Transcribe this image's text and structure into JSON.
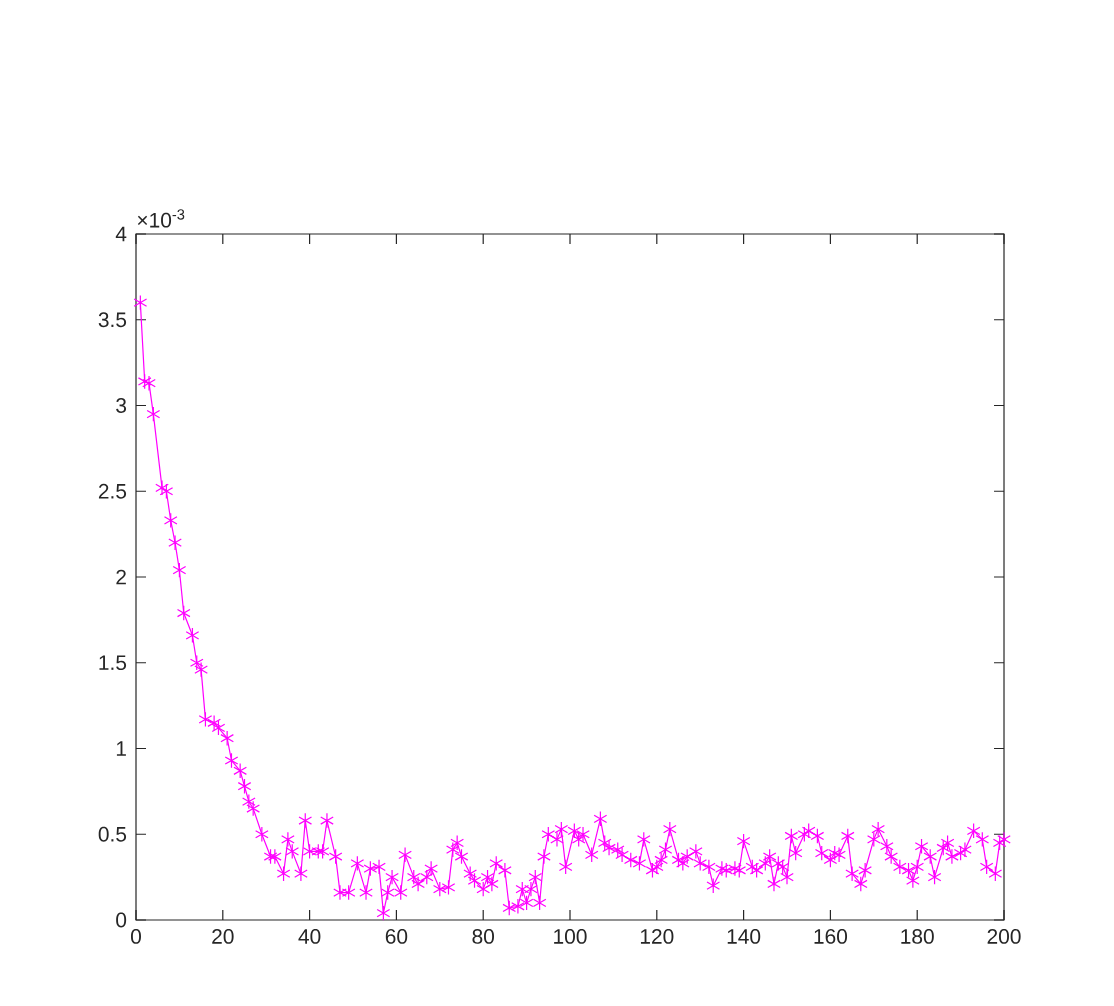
{
  "chart_data": {
    "type": "line",
    "color": "#ff00ff",
    "marker": "cross",
    "line_style": "solid",
    "xlim": [
      0,
      200
    ],
    "ylim": [
      0,
      4
    ],
    "xticks": [
      0,
      20,
      40,
      60,
      80,
      100,
      120,
      140,
      160,
      180,
      200
    ],
    "yticks": [
      0,
      0.5,
      1,
      1.5,
      2,
      2.5,
      3,
      3.5,
      4
    ],
    "annotations": [
      "×10$^{-3}$"
    ],
    "x": [
      1,
      2,
      3,
      4,
      6,
      7,
      8,
      9,
      10,
      11,
      13,
      14,
      15,
      16,
      18,
      19,
      21,
      22,
      24,
      25,
      26,
      27,
      29,
      31,
      32,
      34,
      35,
      36,
      38,
      39,
      40,
      42,
      43,
      44,
      46,
      47,
      49,
      51,
      53,
      54,
      56,
      57,
      58,
      59,
      61,
      62,
      64,
      65,
      67,
      68,
      70,
      72,
      73,
      74,
      75,
      77,
      78,
      80,
      81,
      82,
      83,
      85,
      86,
      88,
      89,
      90,
      91,
      92,
      93,
      94,
      95,
      97,
      98,
      99,
      101,
      102,
      103,
      105,
      107,
      108,
      109,
      111,
      112,
      114,
      116,
      117,
      119,
      120,
      121,
      122,
      123,
      125,
      126,
      127,
      129,
      130,
      132,
      133,
      135,
      136,
      138,
      139,
      140,
      142,
      143,
      145,
      146,
      147,
      148,
      149,
      150,
      151,
      152,
      154,
      155,
      157,
      158,
      160,
      161,
      162,
      164,
      165,
      167,
      168,
      170,
      171,
      173,
      174,
      176,
      178,
      179,
      180,
      181,
      183,
      184,
      186,
      187,
      188,
      190,
      191,
      193,
      195,
      196,
      198,
      199,
      200
    ],
    "values": [
      3.6,
      3.14,
      3.13,
      2.95,
      2.52,
      2.5,
      2.33,
      2.2,
      2.04,
      1.79,
      1.66,
      1.5,
      1.46,
      1.17,
      1.15,
      1.12,
      1.06,
      0.93,
      0.87,
      0.78,
      0.69,
      0.65,
      0.5,
      0.37,
      0.37,
      0.27,
      0.47,
      0.4,
      0.27,
      0.58,
      0.4,
      0.4,
      0.4,
      0.58,
      0.37,
      0.16,
      0.16,
      0.33,
      0.16,
      0.3,
      0.31,
      0.04,
      0.16,
      0.25,
      0.16,
      0.38,
      0.25,
      0.21,
      0.25,
      0.3,
      0.18,
      0.19,
      0.41,
      0.45,
      0.37,
      0.27,
      0.23,
      0.18,
      0.25,
      0.21,
      0.33,
      0.29,
      0.07,
      0.08,
      0.18,
      0.1,
      0.18,
      0.25,
      0.1,
      0.37,
      0.5,
      0.47,
      0.53,
      0.31,
      0.52,
      0.47,
      0.5,
      0.38,
      0.59,
      0.45,
      0.42,
      0.41,
      0.38,
      0.35,
      0.33,
      0.47,
      0.29,
      0.31,
      0.35,
      0.41,
      0.53,
      0.35,
      0.33,
      0.37,
      0.4,
      0.33,
      0.31,
      0.2,
      0.3,
      0.29,
      0.3,
      0.29,
      0.46,
      0.31,
      0.29,
      0.33,
      0.37,
      0.21,
      0.33,
      0.31,
      0.25,
      0.49,
      0.39,
      0.5,
      0.52,
      0.49,
      0.39,
      0.35,
      0.39,
      0.38,
      0.49,
      0.27,
      0.21,
      0.29,
      0.47,
      0.53,
      0.43,
      0.37,
      0.31,
      0.29,
      0.23,
      0.31,
      0.43,
      0.37,
      0.25,
      0.42,
      0.45,
      0.37,
      0.39,
      0.41,
      0.52,
      0.47,
      0.31,
      0.27,
      0.45,
      0.47
    ]
  }
}
